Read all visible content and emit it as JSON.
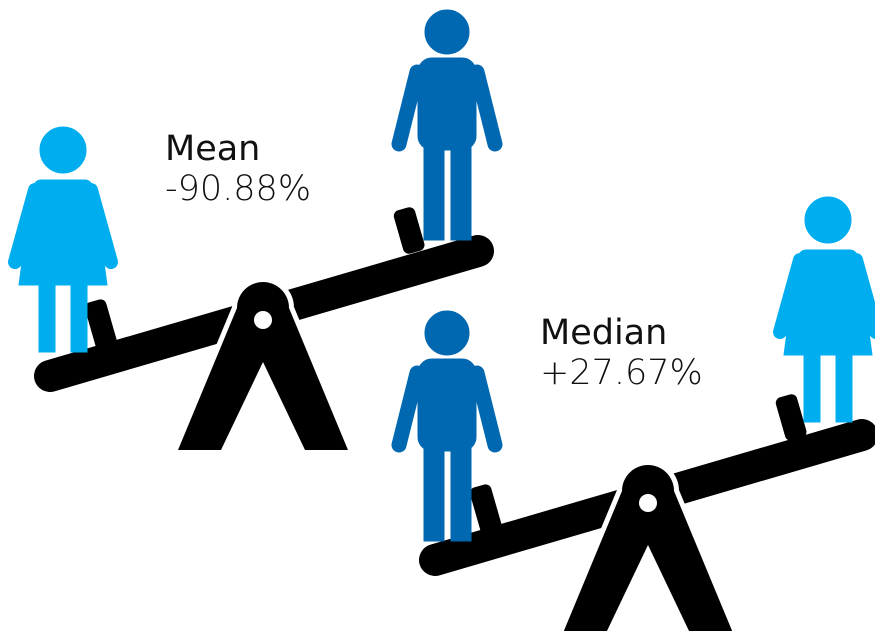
{
  "panels": [
    {
      "label": "Mean",
      "value": "-90.88%"
    },
    {
      "label": "Median",
      "value": "+27.67%"
    }
  ]
}
